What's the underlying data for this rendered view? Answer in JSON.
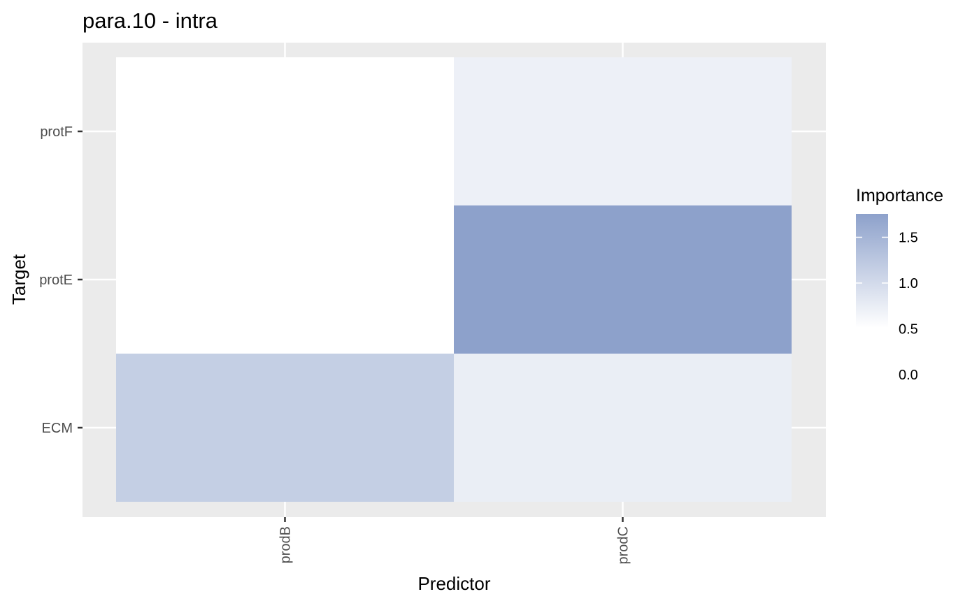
{
  "chart_data": {
    "type": "heatmap",
    "title": "para.10 - intra",
    "xlabel": "Predictor",
    "ylabel": "Target",
    "x_categories": [
      "prodB",
      "prodC"
    ],
    "y_categories": [
      "ECM",
      "protE",
      "protF"
    ],
    "cells": [
      {
        "x": "prodB",
        "y": "ECM",
        "value": 0.9
      },
      {
        "x": "prodC",
        "y": "ECM",
        "value": 0.32
      },
      {
        "x": "prodB",
        "y": "protE",
        "value": 0.0
      },
      {
        "x": "prodC",
        "y": "protE",
        "value": 1.75
      },
      {
        "x": "prodB",
        "y": "protF",
        "value": 0.0
      },
      {
        "x": "prodC",
        "y": "protF",
        "value": 0.28
      }
    ],
    "legend": {
      "title": "Importance",
      "position": "right",
      "breaks": [
        "1.5",
        "1.0",
        "0.5",
        "0.0"
      ],
      "range": [
        0,
        1.75
      ],
      "low_color": "#ffffff",
      "high_color": "#8da1cb"
    },
    "panel_background": "#ebebeb",
    "grid": true
  }
}
